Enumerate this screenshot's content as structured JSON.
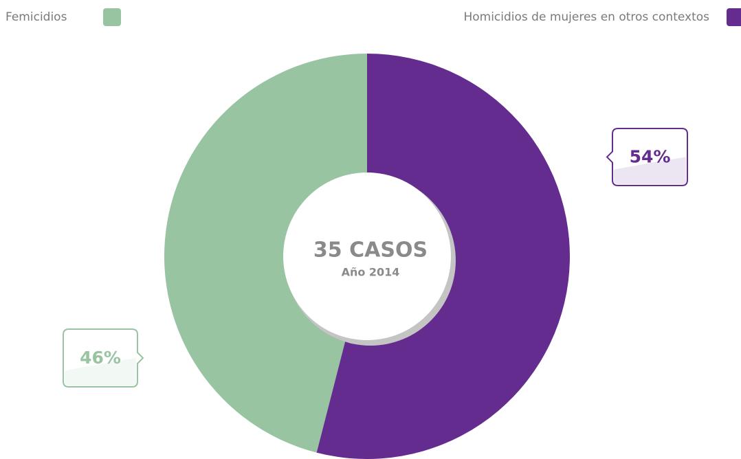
{
  "chart_data": {
    "type": "pie",
    "categories": [
      "Femicidios",
      "Homicidios de mujeres en otros contextos"
    ],
    "values": [
      46,
      54
    ],
    "value_labels": [
      "46%",
      "54%"
    ],
    "colors": [
      "#98c4a2",
      "#652c90"
    ],
    "center_title": "35 CASOS",
    "center_subtitle": "Año 2014"
  }
}
